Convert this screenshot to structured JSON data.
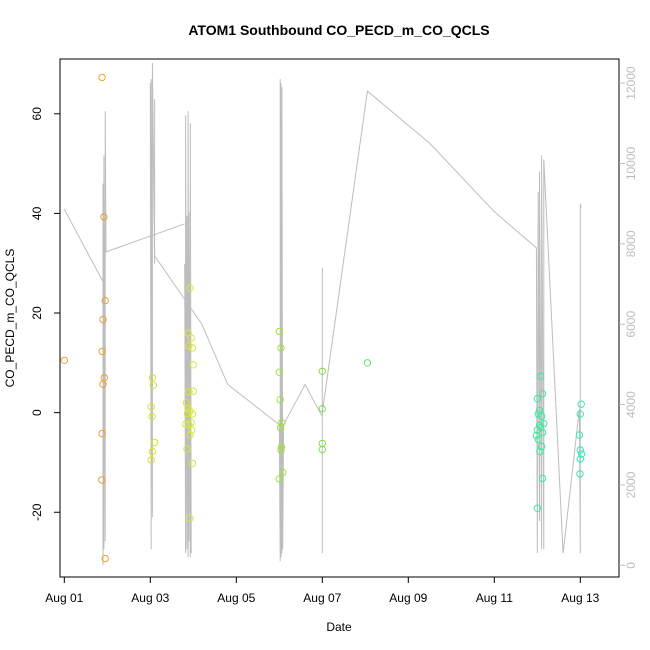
{
  "chart_data": {
    "type": "scatter",
    "title": "ATOM1 Southbound CO_PECD_m_CO_QCLS",
    "xlabel": "Date",
    "ylabel": "CO_PECD_m_CO_QCLS",
    "xlim": [
      -0.1,
      12.9
    ],
    "ylim": [
      -33,
      71
    ],
    "y2lim": [
      -290,
      12600
    ],
    "x_ticks": [
      0,
      2,
      4,
      6,
      8,
      10,
      12
    ],
    "x_tick_labels": [
      "Aug 01",
      "Aug 03",
      "Aug 05",
      "Aug 07",
      "Aug 09",
      "Aug 11",
      "Aug 13"
    ],
    "y_ticks": [
      -20,
      0,
      20,
      40,
      60
    ],
    "y_tick_labels": [
      "-20",
      "0",
      "20",
      "40",
      "60"
    ],
    "y2_ticks": [
      0,
      2000,
      4000,
      6000,
      8000,
      10000,
      12000
    ],
    "y2_tick_labels": [
      "0",
      "2000",
      "4000",
      "6000",
      "8000",
      "10000",
      "12000"
    ],
    "grid": false,
    "colors": {
      "axis": "#000000",
      "secondary_axis": "#bdbdbd",
      "altitude_line": "#bdbdbd"
    },
    "altitude_series": [
      {
        "segments": [
          [
            0.0,
            8860
          ],
          [
            0.9,
            7060
          ],
          [
            0.9,
            0
          ],
          [
            0.9,
            9500
          ],
          [
            0.92,
            400
          ],
          [
            0.92,
            10200
          ],
          [
            0.95,
            600
          ],
          [
            0.95,
            11300
          ],
          [
            0.97,
            7800
          ],
          [
            2.8,
            8500
          ],
          [
            2.8,
            8500
          ]
        ]
      },
      {
        "segments": [
          [
            2.0,
            12000
          ],
          [
            2.02,
            400
          ],
          [
            2.02,
            12100
          ],
          [
            2.05,
            1200
          ],
          [
            2.05,
            12500
          ],
          [
            2.1,
            7500
          ],
          [
            2.1,
            11600
          ],
          [
            2.1,
            7700
          ],
          [
            3.2,
            6000
          ],
          [
            3.8,
            4500
          ]
        ]
      },
      {
        "segments": [
          [
            2.8,
            7500
          ],
          [
            2.82,
            300
          ],
          [
            2.82,
            11200
          ],
          [
            2.85,
            400
          ],
          [
            2.85,
            8700
          ],
          [
            2.88,
            200
          ],
          [
            2.88,
            11300
          ],
          [
            2.9,
            600
          ],
          [
            2.9,
            8800
          ],
          [
            2.93,
            200
          ],
          [
            2.93,
            11000
          ],
          [
            2.95,
            300
          ]
        ]
      },
      {
        "segments": [
          [
            3.8,
            4500
          ],
          [
            5.0,
            3500
          ],
          [
            5.02,
            100
          ],
          [
            5.02,
            12100
          ],
          [
            5.04,
            200
          ],
          [
            5.04,
            12000
          ],
          [
            5.06,
            300
          ],
          [
            5.06,
            11900
          ],
          [
            5.08,
            400
          ],
          [
            5.1,
            3500
          ],
          [
            5.6,
            4500
          ],
          [
            6.0,
            3700
          ]
        ]
      },
      {
        "segments": [
          [
            6.0,
            7400
          ],
          [
            6.0,
            300
          ],
          [
            6.0,
            3800
          ],
          [
            7.05,
            11800
          ],
          [
            8.5,
            10500
          ],
          [
            10.0,
            8800
          ],
          [
            10.98,
            7900
          ],
          [
            11.0,
            300
          ],
          [
            11.02,
            9300
          ],
          [
            11.05,
            1100
          ],
          [
            11.05,
            9800
          ],
          [
            11.1,
            400
          ],
          [
            11.1,
            10200
          ],
          [
            11.15,
            400
          ],
          [
            11.15,
            10100
          ],
          [
            11.6,
            300
          ],
          [
            11.98,
            3900
          ],
          [
            12.0,
            300
          ],
          [
            12.0,
            9000
          ],
          [
            12.02,
            8900
          ]
        ]
      }
    ],
    "series": [
      {
        "color": "#f0a030",
        "points": [
          [
            0.0,
            10.5
          ],
          [
            0.88,
            67.3
          ],
          [
            0.92,
            39.3
          ],
          [
            0.95,
            22.5
          ],
          [
            0.9,
            18.7
          ],
          [
            0.88,
            12.3
          ],
          [
            0.93,
            7.0
          ],
          [
            0.9,
            5.7
          ],
          [
            0.88,
            -4.2
          ],
          [
            0.87,
            -13.5
          ],
          [
            0.95,
            -29.3
          ]
        ]
      },
      {
        "color": "#d8e030",
        "points": [
          [
            2.05,
            7.0
          ],
          [
            2.07,
            5.5
          ],
          [
            2.02,
            1.2
          ],
          [
            2.04,
            -0.8
          ],
          [
            2.1,
            -6.0
          ],
          [
            2.05,
            -7.8
          ],
          [
            2.02,
            -9.5
          ]
        ]
      },
      {
        "color": "#d8e838",
        "points": [
          [
            2.92,
            25.0
          ],
          [
            2.88,
            16.0
          ],
          [
            2.95,
            15.0
          ],
          [
            2.9,
            13.4
          ],
          [
            2.98,
            13.0
          ],
          [
            3.0,
            9.6
          ],
          [
            2.9,
            4.2
          ],
          [
            3.0,
            4.3
          ],
          [
            2.84,
            2.0
          ],
          [
            2.88,
            0.9
          ],
          [
            2.92,
            0.3
          ],
          [
            2.86,
            -0.2
          ],
          [
            2.98,
            -0.3
          ],
          [
            2.95,
            -2.0
          ],
          [
            2.82,
            -2.3
          ],
          [
            2.9,
            -2.5
          ],
          [
            2.96,
            -3.5
          ],
          [
            2.92,
            -4.5
          ],
          [
            2.85,
            -7.3
          ],
          [
            2.98,
            -10.2
          ],
          [
            2.92,
            -21.2
          ]
        ]
      },
      {
        "color": "#a0e040",
        "points": [
          [
            5.0,
            16.3
          ],
          [
            5.04,
            13.0
          ],
          [
            5.0,
            8.1
          ],
          [
            5.02,
            2.6
          ],
          [
            5.06,
            -2.0
          ],
          [
            5.03,
            -3.0
          ],
          [
            5.05,
            -6.9
          ],
          [
            5.04,
            -7.5
          ],
          [
            5.08,
            -12.0
          ],
          [
            5.0,
            -13.3
          ]
        ]
      },
      {
        "color": "#80e048",
        "points": [
          [
            6.0,
            8.3
          ],
          [
            6.0,
            0.8
          ],
          [
            6.0,
            -6.2
          ],
          [
            6.0,
            -7.4
          ]
        ]
      },
      {
        "color": "#68e060",
        "points": [
          [
            7.05,
            10.0
          ]
        ]
      },
      {
        "color": "#40e8a0",
        "points": [
          [
            11.08,
            7.3
          ],
          [
            11.12,
            3.8
          ],
          [
            11.0,
            2.8
          ],
          [
            11.05,
            0.4
          ],
          [
            11.02,
            -0.3
          ],
          [
            11.1,
            -0.7
          ],
          [
            11.15,
            -2.2
          ],
          [
            11.05,
            -2.5
          ],
          [
            11.08,
            -3.0
          ],
          [
            11.0,
            -3.5
          ],
          [
            11.12,
            -4.0
          ],
          [
            10.98,
            -4.6
          ],
          [
            11.02,
            -5.4
          ],
          [
            11.1,
            -6.8
          ],
          [
            11.06,
            -7.8
          ],
          [
            11.12,
            -13.2
          ],
          [
            11.0,
            -19.2
          ]
        ]
      },
      {
        "color": "#38e8b8",
        "points": [
          [
            12.02,
            1.7
          ],
          [
            12.0,
            -0.3
          ],
          [
            11.98,
            -4.5
          ],
          [
            12.0,
            -7.5
          ],
          [
            12.03,
            -8.3
          ],
          [
            12.0,
            -9.3
          ],
          [
            11.99,
            -12.3
          ]
        ]
      }
    ]
  }
}
